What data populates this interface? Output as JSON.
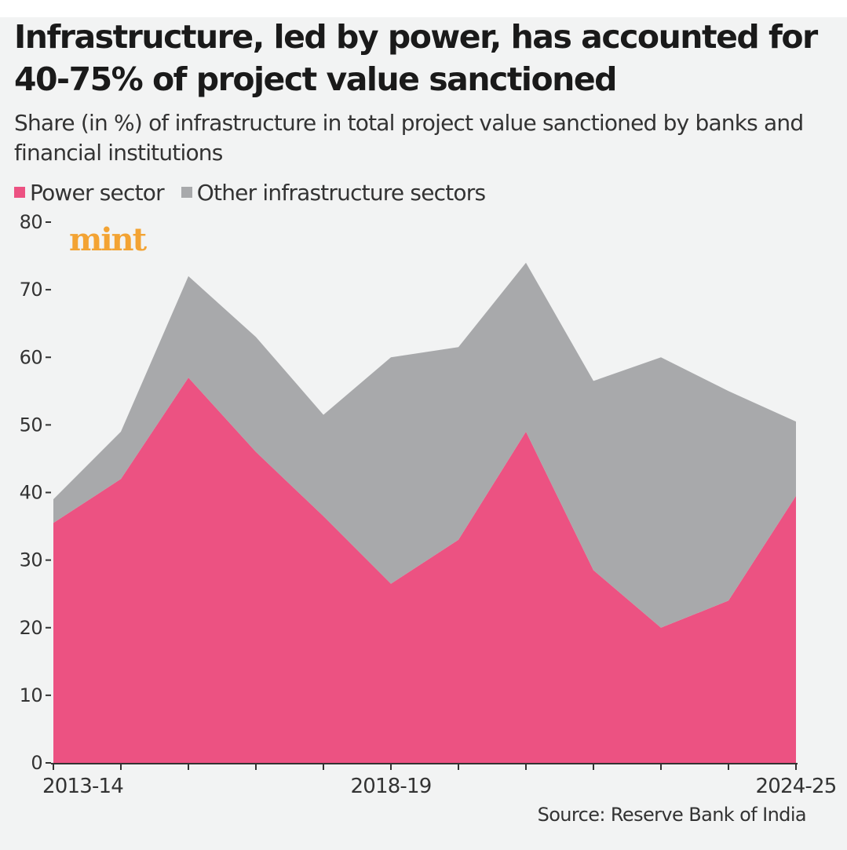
{
  "chart_data": {
    "type": "area",
    "stacked": true,
    "title": "Infrastructure, led by power, has accounted for 40-75% of project value sanctioned",
    "subtitle": "Share (in %) of infrastructure in total project value sanctioned by banks and financial institutions",
    "source": "Source: Reserve Bank of India",
    "watermark": "mint",
    "xlabel": "",
    "ylabel": "",
    "x_tick_labels": [
      {
        "index": 0,
        "label": "2013-14"
      },
      {
        "index": 5,
        "label": "2018-19"
      },
      {
        "index": 11,
        "label": "2024-25"
      }
    ],
    "x_count": 12,
    "yticks": [
      0,
      10,
      20,
      30,
      40,
      50,
      60,
      70,
      80
    ],
    "ylim": [
      0,
      80
    ],
    "legend_position": "top-left",
    "grid": false,
    "series": [
      {
        "name": "Power sector",
        "color": "#ec5282",
        "values": [
          35.5,
          42,
          57,
          46,
          36.5,
          26.5,
          33,
          49,
          28.5,
          20,
          24,
          39.5
        ]
      },
      {
        "name": "Other infrastructure sectors",
        "color": "#a8a9ab",
        "values": [
          3.5,
          7,
          15,
          17,
          15,
          33.5,
          28.5,
          25,
          28,
          40,
          31,
          11
        ]
      }
    ]
  }
}
